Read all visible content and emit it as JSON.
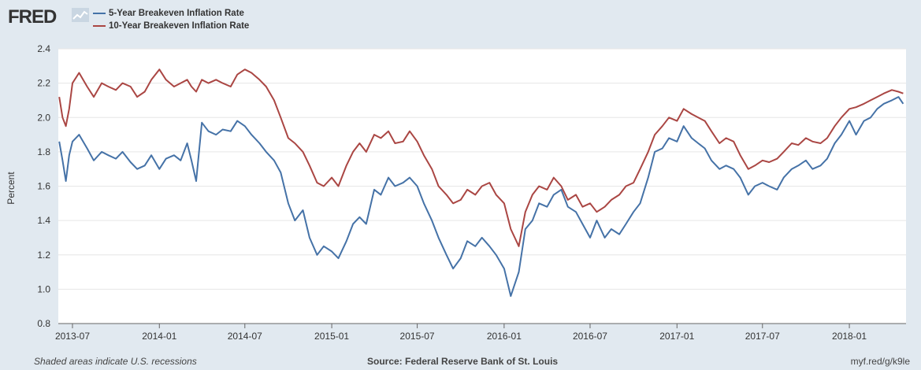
{
  "header": {
    "logo_text": "FRED",
    "logo_icon": "line-chart-icon"
  },
  "colors": {
    "background": "#e1e9f0",
    "plot_background": "#ffffff",
    "series_5yr": "#4572a7",
    "series_10yr": "#aa4643",
    "grid": "#e6e6e6"
  },
  "footer": {
    "recessions_note": "Shaded areas indicate U.S. recessions",
    "source": "Source: Federal Reserve Bank of St. Louis",
    "short_url": "myf.red/g/k9le"
  },
  "chart_data": {
    "type": "line",
    "title": "",
    "xlabel": "",
    "ylabel": "Percent",
    "ylim": [
      0.8,
      2.4
    ],
    "yticks": [
      "0.8",
      "1.0",
      "1.2",
      "1.4",
      "1.6",
      "1.8",
      "2.0",
      "2.2",
      "2.4"
    ],
    "xlim": [
      "2013-06-01",
      "2018-05-01"
    ],
    "xticks": [
      "2013-07",
      "2014-01",
      "2014-07",
      "2015-01",
      "2015-07",
      "2016-01",
      "2016-07",
      "2017-01",
      "2017-07",
      "2018-01"
    ],
    "grid": true,
    "legend_position": "top-left",
    "series": [
      {
        "name": "5-Year Breakeven Inflation Rate",
        "color": "#4572a7",
        "x": [
          "2013-06-03",
          "2013-06-10",
          "2013-06-17",
          "2013-06-24",
          "2013-07-01",
          "2013-07-15",
          "2013-08-01",
          "2013-08-15",
          "2013-09-01",
          "2013-09-15",
          "2013-10-01",
          "2013-10-15",
          "2013-11-01",
          "2013-11-15",
          "2013-12-01",
          "2013-12-15",
          "2014-01-01",
          "2014-01-15",
          "2014-02-01",
          "2014-02-15",
          "2014-03-01",
          "2014-03-10",
          "2014-03-20",
          "2014-04-01",
          "2014-04-15",
          "2014-05-01",
          "2014-05-15",
          "2014-06-01",
          "2014-06-15",
          "2014-07-01",
          "2014-07-15",
          "2014-08-01",
          "2014-08-15",
          "2014-09-01",
          "2014-09-15",
          "2014-10-01",
          "2014-10-15",
          "2014-11-01",
          "2014-11-15",
          "2014-12-01",
          "2014-12-15",
          "2015-01-01",
          "2015-01-15",
          "2015-02-01",
          "2015-02-15",
          "2015-03-01",
          "2015-03-15",
          "2015-04-01",
          "2015-04-15",
          "2015-05-01",
          "2015-05-15",
          "2015-06-01",
          "2015-06-15",
          "2015-07-01",
          "2015-07-15",
          "2015-08-01",
          "2015-08-15",
          "2015-09-01",
          "2015-09-15",
          "2015-10-01",
          "2015-10-15",
          "2015-11-01",
          "2015-11-15",
          "2015-12-01",
          "2015-12-15",
          "2016-01-01",
          "2016-01-15",
          "2016-02-01",
          "2016-02-15",
          "2016-03-01",
          "2016-03-15",
          "2016-04-01",
          "2016-04-15",
          "2016-05-01",
          "2016-05-15",
          "2016-06-01",
          "2016-06-15",
          "2016-07-01",
          "2016-07-15",
          "2016-08-01",
          "2016-08-15",
          "2016-09-01",
          "2016-09-15",
          "2016-10-01",
          "2016-10-15",
          "2016-11-01",
          "2016-11-15",
          "2016-12-01",
          "2016-12-15",
          "2017-01-01",
          "2017-01-15",
          "2017-02-01",
          "2017-02-15",
          "2017-03-01",
          "2017-03-15",
          "2017-04-01",
          "2017-04-15",
          "2017-05-01",
          "2017-05-15",
          "2017-06-01",
          "2017-06-15",
          "2017-07-01",
          "2017-07-15",
          "2017-08-01",
          "2017-08-15",
          "2017-09-01",
          "2017-09-15",
          "2017-10-01",
          "2017-10-15",
          "2017-11-01",
          "2017-11-15",
          "2017-12-01",
          "2017-12-15",
          "2018-01-01",
          "2018-01-15",
          "2018-02-01",
          "2018-02-15",
          "2018-03-01",
          "2018-03-15",
          "2018-04-01",
          "2018-04-15",
          "2018-04-25"
        ],
        "values": [
          1.86,
          1.75,
          1.63,
          1.78,
          1.86,
          1.9,
          1.82,
          1.75,
          1.8,
          1.78,
          1.76,
          1.8,
          1.74,
          1.7,
          1.72,
          1.78,
          1.7,
          1.76,
          1.78,
          1.75,
          1.85,
          1.75,
          1.63,
          1.97,
          1.92,
          1.9,
          1.93,
          1.92,
          1.98,
          1.95,
          1.9,
          1.85,
          1.8,
          1.75,
          1.68,
          1.5,
          1.4,
          1.46,
          1.3,
          1.2,
          1.25,
          1.22,
          1.18,
          1.28,
          1.38,
          1.42,
          1.38,
          1.58,
          1.55,
          1.65,
          1.6,
          1.62,
          1.65,
          1.6,
          1.5,
          1.4,
          1.3,
          1.2,
          1.12,
          1.18,
          1.28,
          1.25,
          1.3,
          1.25,
          1.2,
          1.12,
          0.96,
          1.1,
          1.35,
          1.4,
          1.5,
          1.48,
          1.55,
          1.58,
          1.48,
          1.45,
          1.38,
          1.3,
          1.4,
          1.3,
          1.35,
          1.32,
          1.38,
          1.45,
          1.5,
          1.65,
          1.8,
          1.82,
          1.88,
          1.86,
          1.95,
          1.88,
          1.85,
          1.82,
          1.75,
          1.7,
          1.72,
          1.7,
          1.65,
          1.55,
          1.6,
          1.62,
          1.6,
          1.58,
          1.65,
          1.7,
          1.72,
          1.75,
          1.7,
          1.72,
          1.76,
          1.85,
          1.9,
          1.98,
          1.9,
          1.98,
          2.0,
          2.05,
          2.08,
          2.1,
          2.12,
          2.08
        ]
      },
      {
        "name": "10-Year Breakeven Inflation Rate",
        "color": "#aa4643",
        "x": [
          "2013-06-03",
          "2013-06-10",
          "2013-06-17",
          "2013-06-24",
          "2013-07-01",
          "2013-07-15",
          "2013-08-01",
          "2013-08-15",
          "2013-09-01",
          "2013-09-15",
          "2013-10-01",
          "2013-10-15",
          "2013-11-01",
          "2013-11-15",
          "2013-12-01",
          "2013-12-15",
          "2014-01-01",
          "2014-01-15",
          "2014-02-01",
          "2014-02-15",
          "2014-03-01",
          "2014-03-10",
          "2014-03-20",
          "2014-04-01",
          "2014-04-15",
          "2014-05-01",
          "2014-05-15",
          "2014-06-01",
          "2014-06-15",
          "2014-07-01",
          "2014-07-15",
          "2014-08-01",
          "2014-08-15",
          "2014-09-01",
          "2014-09-15",
          "2014-10-01",
          "2014-10-15",
          "2014-11-01",
          "2014-11-15",
          "2014-12-01",
          "2014-12-15",
          "2015-01-01",
          "2015-01-15",
          "2015-02-01",
          "2015-02-15",
          "2015-03-01",
          "2015-03-15",
          "2015-04-01",
          "2015-04-15",
          "2015-05-01",
          "2015-05-15",
          "2015-06-01",
          "2015-06-15",
          "2015-07-01",
          "2015-07-15",
          "2015-08-01",
          "2015-08-15",
          "2015-09-01",
          "2015-09-15",
          "2015-10-01",
          "2015-10-15",
          "2015-11-01",
          "2015-11-15",
          "2015-12-01",
          "2015-12-15",
          "2016-01-01",
          "2016-01-15",
          "2016-02-01",
          "2016-02-15",
          "2016-03-01",
          "2016-03-15",
          "2016-04-01",
          "2016-04-15",
          "2016-05-01",
          "2016-05-15",
          "2016-06-01",
          "2016-06-15",
          "2016-07-01",
          "2016-07-15",
          "2016-08-01",
          "2016-08-15",
          "2016-09-01",
          "2016-09-15",
          "2016-10-01",
          "2016-10-15",
          "2016-11-01",
          "2016-11-15",
          "2016-12-01",
          "2016-12-15",
          "2017-01-01",
          "2017-01-15",
          "2017-02-01",
          "2017-02-15",
          "2017-03-01",
          "2017-03-15",
          "2017-04-01",
          "2017-04-15",
          "2017-05-01",
          "2017-05-15",
          "2017-06-01",
          "2017-06-15",
          "2017-07-01",
          "2017-07-15",
          "2017-08-01",
          "2017-08-15",
          "2017-09-01",
          "2017-09-15",
          "2017-10-01",
          "2017-10-15",
          "2017-11-01",
          "2017-11-15",
          "2017-12-01",
          "2017-12-15",
          "2018-01-01",
          "2018-01-15",
          "2018-02-01",
          "2018-02-15",
          "2018-03-01",
          "2018-03-15",
          "2018-04-01",
          "2018-04-15",
          "2018-04-25"
        ],
        "values": [
          2.12,
          2.0,
          1.95,
          2.05,
          2.2,
          2.26,
          2.18,
          2.12,
          2.2,
          2.18,
          2.16,
          2.2,
          2.18,
          2.12,
          2.15,
          2.22,
          2.28,
          2.22,
          2.18,
          2.2,
          2.22,
          2.18,
          2.15,
          2.22,
          2.2,
          2.22,
          2.2,
          2.18,
          2.25,
          2.28,
          2.26,
          2.22,
          2.18,
          2.1,
          2.0,
          1.88,
          1.85,
          1.8,
          1.72,
          1.62,
          1.6,
          1.65,
          1.6,
          1.72,
          1.8,
          1.85,
          1.8,
          1.9,
          1.88,
          1.92,
          1.85,
          1.86,
          1.92,
          1.86,
          1.78,
          1.7,
          1.6,
          1.55,
          1.5,
          1.52,
          1.58,
          1.55,
          1.6,
          1.62,
          1.55,
          1.5,
          1.35,
          1.25,
          1.45,
          1.55,
          1.6,
          1.58,
          1.65,
          1.6,
          1.52,
          1.55,
          1.48,
          1.5,
          1.45,
          1.48,
          1.52,
          1.55,
          1.6,
          1.62,
          1.7,
          1.8,
          1.9,
          1.95,
          2.0,
          1.98,
          2.05,
          2.02,
          2.0,
          1.98,
          1.92,
          1.85,
          1.88,
          1.86,
          1.78,
          1.7,
          1.72,
          1.75,
          1.74,
          1.76,
          1.8,
          1.85,
          1.84,
          1.88,
          1.86,
          1.85,
          1.88,
          1.95,
          2.0,
          2.05,
          2.06,
          2.08,
          2.1,
          2.12,
          2.14,
          2.16,
          2.15,
          2.14
        ]
      }
    ]
  }
}
